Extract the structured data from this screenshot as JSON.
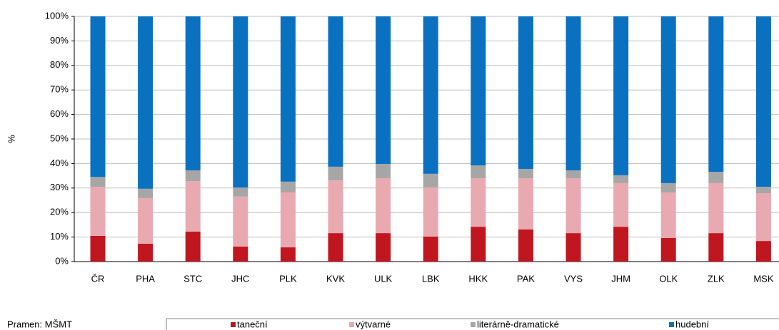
{
  "chart_data": {
    "type": "stacked_bar",
    "y_label": "%",
    "source": "Pramen: MŠMT",
    "categories": [
      "ČR",
      "PHA",
      "STC",
      "JHC",
      "PLK",
      "KVK",
      "ULK",
      "LBK",
      "HKK",
      "PAK",
      "VYS",
      "JHM",
      "OLK",
      "ZLK",
      "MSK"
    ],
    "series": [
      {
        "name": "taneční",
        "color": "#c0161f",
        "values": [
          10.5,
          7.3,
          12.2,
          6.1,
          5.8,
          11.6,
          11.6,
          10.2,
          14.2,
          13.1,
          11.6,
          14.2,
          9.6,
          11.6,
          8.4
        ]
      },
      {
        "name": "výtvarné",
        "color": "#e8a9b0",
        "values": [
          20,
          18.6,
          20.6,
          20.4,
          22.4,
          21.5,
          22.4,
          20,
          19.8,
          20.9,
          22.4,
          17.8,
          18.6,
          20.4,
          19.5
        ]
      },
      {
        "name": "literárně-dramatické",
        "color": "#a6a6a6",
        "values": [
          4,
          3.8,
          4.4,
          3.7,
          4.4,
          5.6,
          5.8,
          5.6,
          5.2,
          3.8,
          3.2,
          3.2,
          3.8,
          4.6,
          2.6
        ]
      },
      {
        "name": "hudební",
        "color": "#0a70c0",
        "values": [
          65.5,
          70.3,
          62.8,
          69.8,
          67.4,
          61.3,
          60.2,
          64.2,
          60.8,
          62.2,
          62.8,
          64.8,
          68,
          63.4,
          69.5
        ]
      }
    ],
    "ylim": [
      0,
      100
    ],
    "yticks": [
      {
        "value": 0,
        "label": "0%"
      },
      {
        "value": 10,
        "label": "10%"
      },
      {
        "value": 20,
        "label": "20%"
      },
      {
        "value": 30,
        "label": "30%"
      },
      {
        "value": 40,
        "label": "40%"
      },
      {
        "value": 50,
        "label": "50%"
      },
      {
        "value": 60,
        "label": "60%"
      },
      {
        "value": 70,
        "label": "70%"
      },
      {
        "value": 80,
        "label": "80%"
      },
      {
        "value": 90,
        "label": "90%"
      },
      {
        "value": 100,
        "label": "100%"
      }
    ],
    "grid": true
  }
}
